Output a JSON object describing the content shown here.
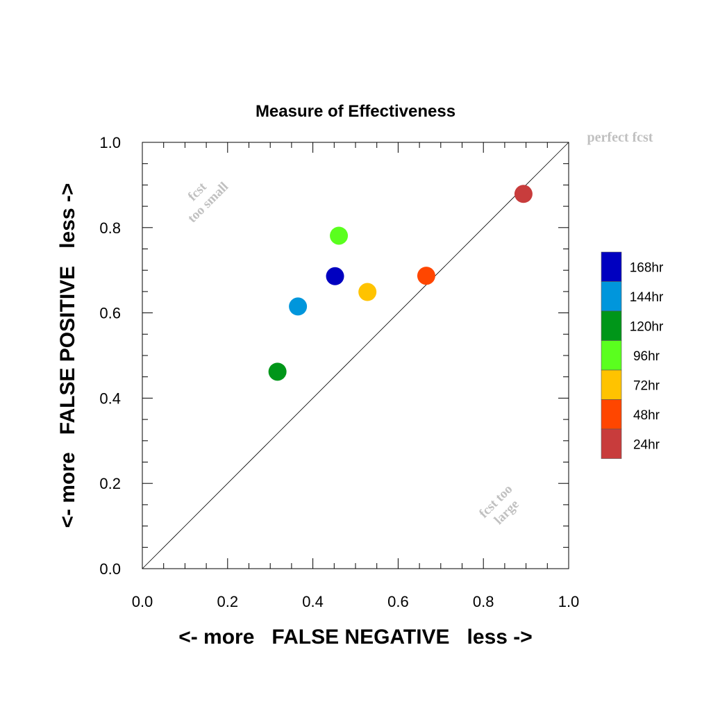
{
  "chart_data": {
    "type": "scatter",
    "title": "Measure of Effectiveness",
    "xlabel": "<- more   FALSE NEGATIVE   less ->",
    "ylabel": "<- more   FALSE POSITIVE   less ->",
    "xlim": [
      0,
      1
    ],
    "ylim": [
      0,
      1
    ],
    "xticks": [
      "0.0",
      "0.2",
      "0.4",
      "0.6",
      "0.8",
      "1.0"
    ],
    "yticks": [
      "0.0",
      "0.2",
      "0.4",
      "0.6",
      "0.8",
      "1.0"
    ],
    "grid": false,
    "diagonal_line": true,
    "annotations": {
      "perfect": "perfect fcst",
      "small_line1": "fcst",
      "small_line2": "too small",
      "large_line1": "fcst too",
      "large_line2": "large"
    },
    "legend_position": "right",
    "points": [
      {
        "name": "168hr",
        "x": 0.452,
        "y": 0.686,
        "color": "#0000c0"
      },
      {
        "name": "144hr",
        "x": 0.365,
        "y": 0.615,
        "color": "#0096dc"
      },
      {
        "name": "120hr",
        "x": 0.317,
        "y": 0.462,
        "color": "#009619"
      },
      {
        "name": "96hr",
        "x": 0.461,
        "y": 0.781,
        "color": "#5aff1e"
      },
      {
        "name": "72hr",
        "x": 0.528,
        "y": 0.649,
        "color": "#ffc300"
      },
      {
        "name": "48hr",
        "x": 0.666,
        "y": 0.687,
        "color": "#ff4600"
      },
      {
        "name": "24hr",
        "x": 0.894,
        "y": 0.879,
        "color": "#c83c3c"
      }
    ]
  }
}
